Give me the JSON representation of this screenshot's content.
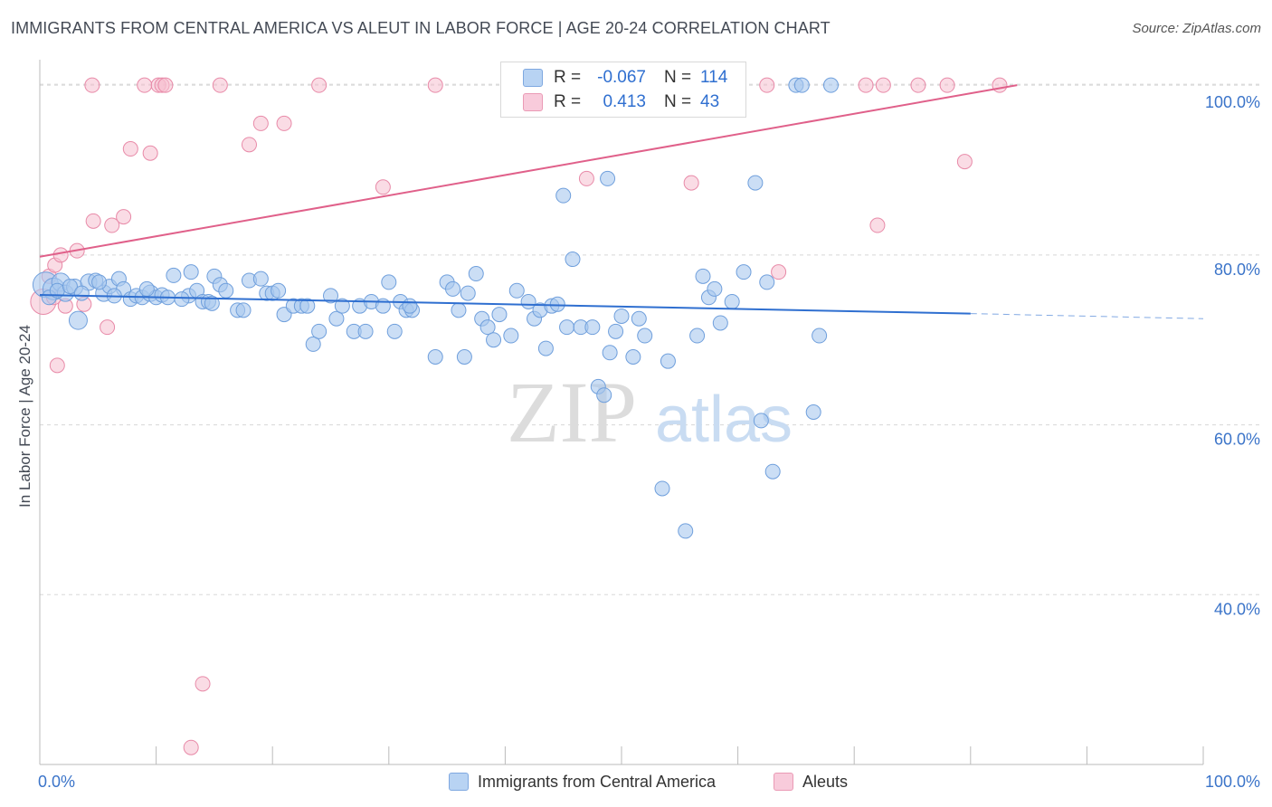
{
  "title": "IMMIGRANTS FROM CENTRAL AMERICA VS ALEUT IN LABOR FORCE | AGE 20-24 CORRELATION CHART",
  "source": "Source: ZipAtlas.com",
  "watermark": {
    "zip": "ZIP",
    "atlas": "atlas"
  },
  "legend": {
    "rows": [
      {
        "r_label": "R =",
        "r_value": "-0.067",
        "n_label": "N =",
        "n_value": "114"
      },
      {
        "r_label": "R =",
        "r_value": "0.413",
        "n_label": "N =",
        "n_value": "43"
      }
    ]
  },
  "bottom_legend": {
    "series1": "Immigrants from Central America",
    "series2": "Aleuts"
  },
  "colors": {
    "blue_fill": "#a9c8ef",
    "blue_stroke": "#6f9fdc",
    "blue_line": "#2f6fd0",
    "pink_fill": "#f5bfd0",
    "pink_stroke": "#e88aa8",
    "pink_line": "#e0608a",
    "axis_text": "#3b74c9"
  },
  "chart_data": {
    "type": "scatter",
    "xlabel": "",
    "ylabel": "In Labor Force | Age 20-24",
    "xlim": [
      0,
      100
    ],
    "ylim": [
      20,
      103
    ],
    "x_tick_labels": [
      "0.0%",
      "100.0%"
    ],
    "y_ticks": [
      40,
      60,
      80,
      100
    ],
    "y_tick_labels": [
      "40.0%",
      "60.0%",
      "80.0%",
      "100.0%"
    ],
    "grid": true,
    "legend_position": "top-center",
    "series": [
      {
        "name": "Immigrants from Central America",
        "color": "#a9c8ef",
        "r": -0.067,
        "n": 114,
        "trend": {
          "x": [
            0,
            80
          ],
          "y": [
            75.3,
            73.1
          ],
          "dashed_to": [
            100,
            72.5
          ]
        },
        "points": [
          [
            0.5,
            76.5,
            14
          ],
          [
            1.2,
            76.0,
            12
          ],
          [
            1.8,
            76.8,
            10
          ],
          [
            2.2,
            75.5,
            9
          ],
          [
            3.0,
            76.2,
            9
          ],
          [
            3.3,
            72.3,
            10
          ],
          [
            4.2,
            76.8,
            9
          ],
          [
            4.8,
            77.0,
            8
          ],
          [
            5.5,
            75.5,
            9
          ],
          [
            6.0,
            76.3,
            8
          ],
          [
            6.8,
            77.2,
            8
          ],
          [
            7.2,
            76.0,
            8
          ],
          [
            7.8,
            74.8,
            8
          ],
          [
            8.3,
            75.2,
            8
          ],
          [
            8.8,
            75.0,
            8
          ],
          [
            9.5,
            75.5,
            9
          ],
          [
            10.0,
            75.0,
            8
          ],
          [
            10.5,
            75.3,
            8
          ],
          [
            11.5,
            77.6,
            8
          ],
          [
            12.8,
            75.2,
            8
          ],
          [
            13.0,
            78.0,
            8
          ],
          [
            13.5,
            75.8,
            8
          ],
          [
            14.0,
            74.5,
            8
          ],
          [
            14.5,
            74.5,
            8
          ],
          [
            15.0,
            77.5,
            8
          ],
          [
            15.5,
            76.5,
            8
          ],
          [
            16.0,
            75.8,
            8
          ],
          [
            17.0,
            73.5,
            8
          ],
          [
            17.5,
            73.5,
            8
          ],
          [
            18.0,
            77.0,
            8
          ],
          [
            19.0,
            77.2,
            8
          ],
          [
            19.5,
            75.5,
            8
          ],
          [
            20.0,
            75.5,
            8
          ],
          [
            20.5,
            75.8,
            8
          ],
          [
            21.0,
            73.0,
            8
          ],
          [
            21.8,
            74.0,
            8
          ],
          [
            22.5,
            74.0,
            8
          ],
          [
            23.0,
            74.0,
            8
          ],
          [
            23.5,
            69.5,
            8
          ],
          [
            24.0,
            71.0,
            8
          ],
          [
            25.0,
            75.2,
            8
          ],
          [
            25.5,
            72.5,
            8
          ],
          [
            26.0,
            74.0,
            8
          ],
          [
            27.0,
            71.0,
            8
          ],
          [
            27.5,
            74.0,
            8
          ],
          [
            28.0,
            71.0,
            8
          ],
          [
            28.5,
            74.5,
            8
          ],
          [
            29.5,
            74.0,
            8
          ],
          [
            30.0,
            76.8,
            8
          ],
          [
            30.5,
            71.0,
            8
          ],
          [
            31.0,
            74.5,
            8
          ],
          [
            31.5,
            73.5,
            8
          ],
          [
            32.0,
            73.5,
            8
          ],
          [
            31.8,
            74.0,
            8
          ],
          [
            34.0,
            68.0,
            8
          ],
          [
            35.0,
            76.8,
            8
          ],
          [
            35.5,
            76.0,
            8
          ],
          [
            36.5,
            68.0,
            8
          ],
          [
            36.0,
            73.5,
            8
          ],
          [
            36.8,
            75.5,
            8
          ],
          [
            37.5,
            77.8,
            8
          ],
          [
            38.0,
            72.5,
            8
          ],
          [
            38.5,
            71.5,
            8
          ],
          [
            39.0,
            70.0,
            8
          ],
          [
            39.5,
            73.0,
            8
          ],
          [
            40.5,
            70.5,
            8
          ],
          [
            41.0,
            75.8,
            8
          ],
          [
            42.0,
            74.5,
            8
          ],
          [
            42.5,
            72.5,
            8
          ],
          [
            43.0,
            73.5,
            8
          ],
          [
            43.5,
            69.0,
            8
          ],
          [
            44.0,
            74.0,
            8
          ],
          [
            44.5,
            74.2,
            8
          ],
          [
            45.0,
            87.0,
            8
          ],
          [
            45.3,
            71.5,
            8
          ],
          [
            45.8,
            79.5,
            8
          ],
          [
            46.5,
            71.5,
            8
          ],
          [
            47.5,
            71.5,
            8
          ],
          [
            48.0,
            64.5,
            8
          ],
          [
            48.5,
            63.5,
            8
          ],
          [
            48.8,
            89.0,
            8
          ],
          [
            49.0,
            68.5,
            8
          ],
          [
            49.5,
            71.0,
            8
          ],
          [
            50.0,
            72.8,
            8
          ],
          [
            51.0,
            68.0,
            8
          ],
          [
            51.5,
            72.5,
            8
          ],
          [
            52.0,
            70.5,
            8
          ],
          [
            53.5,
            52.5,
            8
          ],
          [
            54.0,
            67.5,
            8
          ],
          [
            55.5,
            47.5,
            8
          ],
          [
            56.5,
            70.5,
            8
          ],
          [
            57.0,
            77.5,
            8
          ],
          [
            57.5,
            75.0,
            8
          ],
          [
            58.0,
            76.0,
            8
          ],
          [
            58.5,
            72.0,
            8
          ],
          [
            59.5,
            74.5,
            8
          ],
          [
            60.5,
            78.0,
            8
          ],
          [
            61.5,
            88.5,
            8
          ],
          [
            62.0,
            60.5,
            8
          ],
          [
            62.5,
            76.8,
            8
          ],
          [
            63.0,
            54.5,
            8
          ],
          [
            65.0,
            100.0,
            8
          ],
          [
            65.5,
            100.0,
            8
          ],
          [
            66.5,
            61.5,
            8
          ],
          [
            67.0,
            70.5,
            8
          ],
          [
            68.0,
            100.0,
            8
          ],
          [
            0.8,
            75.0,
            8
          ],
          [
            1.5,
            75.8,
            8
          ],
          [
            2.6,
            76.3,
            8
          ],
          [
            3.6,
            75.5,
            8
          ],
          [
            5.1,
            76.8,
            8
          ],
          [
            6.4,
            75.2,
            8
          ],
          [
            9.2,
            76.0,
            8
          ],
          [
            11.0,
            75.0,
            8
          ],
          [
            12.2,
            74.8,
            8
          ],
          [
            14.8,
            74.3,
            8
          ]
        ]
      },
      {
        "name": "Aleuts",
        "color": "#f5bfd0",
        "r": 0.413,
        "n": 43,
        "trend": {
          "x": [
            0,
            84
          ],
          "y": [
            79.8,
            100.0
          ]
        },
        "points": [
          [
            0.3,
            74.5,
            14
          ],
          [
            0.8,
            77.5,
            8
          ],
          [
            1.2,
            75.0,
            8
          ],
          [
            1.3,
            78.8,
            8
          ],
          [
            1.5,
            67.0,
            8
          ],
          [
            1.8,
            80.0,
            8
          ],
          [
            2.2,
            74.0,
            8
          ],
          [
            3.2,
            80.5,
            8
          ],
          [
            3.8,
            74.2,
            8
          ],
          [
            4.5,
            100.0,
            8
          ],
          [
            4.6,
            84.0,
            8
          ],
          [
            5.8,
            71.5,
            8
          ],
          [
            6.2,
            83.5,
            8
          ],
          [
            7.2,
            84.5,
            8
          ],
          [
            7.8,
            92.5,
            8
          ],
          [
            9.0,
            100.0,
            8
          ],
          [
            9.5,
            92.0,
            8
          ],
          [
            10.2,
            100.0,
            8
          ],
          [
            10.5,
            100.0,
            8
          ],
          [
            10.8,
            100.0,
            8
          ],
          [
            13.0,
            22.0,
            8
          ],
          [
            14.0,
            29.5,
            8
          ],
          [
            15.5,
            100.0,
            8
          ],
          [
            18.0,
            93.0,
            8
          ],
          [
            19.0,
            95.5,
            8
          ],
          [
            21.0,
            95.5,
            8
          ],
          [
            24.0,
            100.0,
            8
          ],
          [
            29.5,
            88.0,
            8
          ],
          [
            34.0,
            100.0,
            8
          ],
          [
            44.0,
            100.0,
            8
          ],
          [
            47.0,
            89.0,
            8
          ],
          [
            49.0,
            100.0,
            8
          ],
          [
            56.0,
            88.5,
            8
          ],
          [
            60.0,
            100.0,
            8
          ],
          [
            62.5,
            100.0,
            8
          ],
          [
            63.5,
            78.0,
            8
          ],
          [
            71.0,
            100.0,
            8
          ],
          [
            72.0,
            83.5,
            8
          ],
          [
            72.5,
            100.0,
            8
          ],
          [
            75.5,
            100.0,
            8
          ],
          [
            78.0,
            100.0,
            8
          ],
          [
            79.5,
            91.0,
            8
          ],
          [
            82.5,
            100.0,
            8
          ]
        ]
      }
    ]
  }
}
